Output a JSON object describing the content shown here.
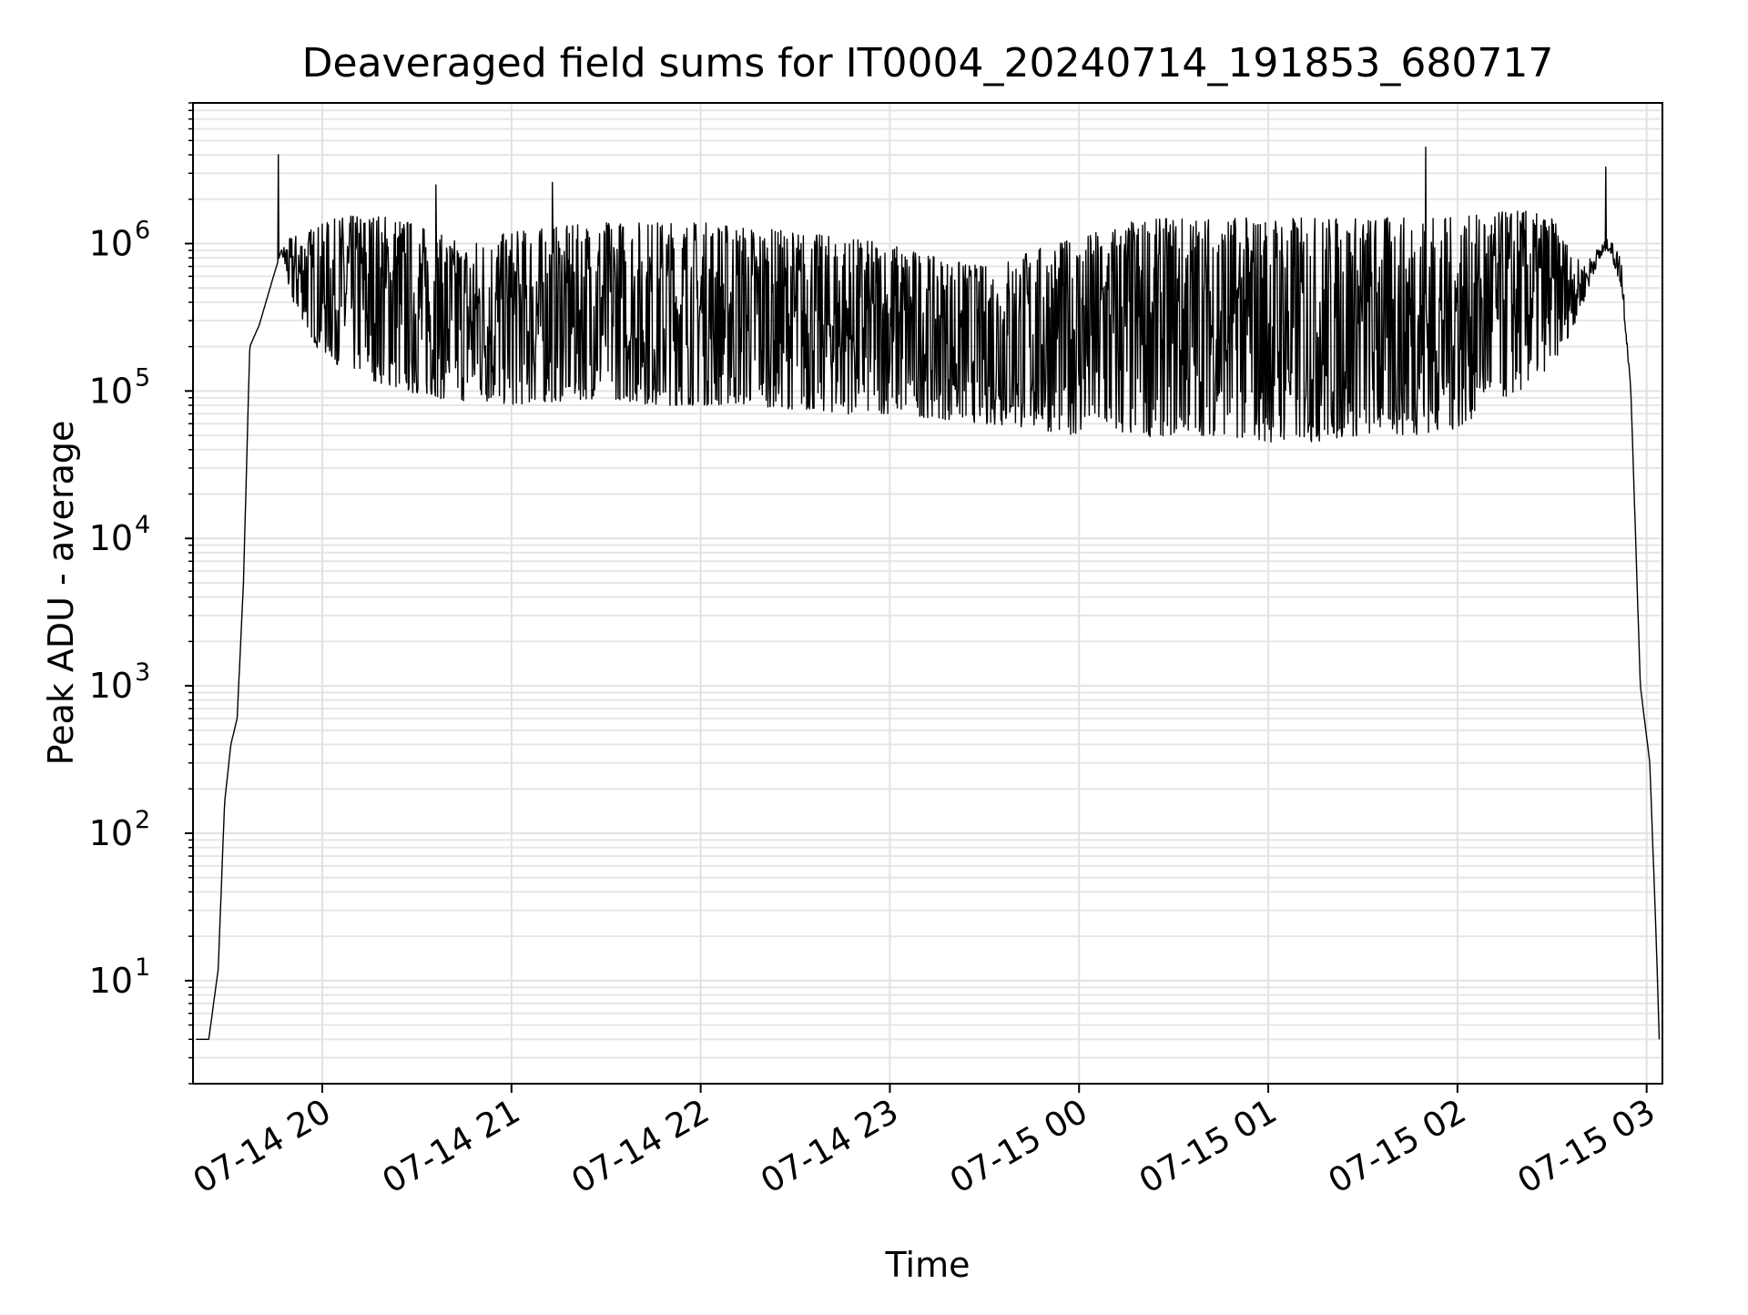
{
  "chart_data": {
    "type": "line",
    "title": "Deaveraged field sums for IT0004_20240714_191853_680717",
    "xlabel": "Time",
    "ylabel": "Peak ADU - average",
    "y_scale": "log",
    "ylim": [
      2,
      9000000
    ],
    "xlim": [
      "2024-07-14 19:19",
      "2024-07-15 03:05"
    ],
    "x_ticks": [
      {
        "t": "2024-07-14 20:00",
        "label": "07-14 20"
      },
      {
        "t": "2024-07-14 21:00",
        "label": "07-14 21"
      },
      {
        "t": "2024-07-14 22:00",
        "label": "07-14 22"
      },
      {
        "t": "2024-07-14 23:00",
        "label": "07-14 23"
      },
      {
        "t": "2024-07-15 00:00",
        "label": "07-15 00"
      },
      {
        "t": "2024-07-15 01:00",
        "label": "07-15 01"
      },
      {
        "t": "2024-07-15 02:00",
        "label": "07-15 02"
      },
      {
        "t": "2024-07-15 03:00",
        "label": "07-15 03"
      }
    ],
    "y_ticks": [
      {
        "value": 10,
        "base": "10",
        "exp": "1"
      },
      {
        "value": 100,
        "base": "10",
        "exp": "2"
      },
      {
        "value": 1000,
        "base": "10",
        "exp": "3"
      },
      {
        "value": 10000,
        "base": "10",
        "exp": "4"
      },
      {
        "value": 100000,
        "base": "10",
        "exp": "5"
      },
      {
        "value": 1000000,
        "base": "10",
        "exp": "6"
      }
    ],
    "grid": true,
    "series": [
      {
        "color": "#000000",
        "envelope": {
          "x": [
            "2024-07-14 19:20",
            "2024-07-14 19:24",
            "2024-07-14 19:27",
            "2024-07-14 19:29",
            "2024-07-14 19:31",
            "2024-07-14 19:33",
            "2024-07-14 19:35",
            "2024-07-14 19:37",
            "2024-07-14 19:40",
            "2024-07-14 19:44",
            "2024-07-14 19:47",
            "2024-07-14 19:50",
            "2024-07-14 19:54",
            "2024-07-14 19:58",
            "2024-07-14 20:05",
            "2024-07-14 20:15",
            "2024-07-14 20:25",
            "2024-07-14 20:35",
            "2024-07-14 20:45",
            "2024-07-14 21:00",
            "2024-07-14 21:15",
            "2024-07-14 21:30",
            "2024-07-14 21:45",
            "2024-07-14 22:00",
            "2024-07-14 22:15",
            "2024-07-14 22:30",
            "2024-07-14 22:45",
            "2024-07-14 23:00",
            "2024-07-14 23:15",
            "2024-07-14 23:30",
            "2024-07-14 23:45",
            "2024-07-15 00:00",
            "2024-07-15 00:15",
            "2024-07-15 00:30",
            "2024-07-15 00:45",
            "2024-07-15 01:00",
            "2024-07-15 01:15",
            "2024-07-15 01:30",
            "2024-07-15 01:45",
            "2024-07-15 02:00",
            "2024-07-15 02:10",
            "2024-07-15 02:20",
            "2024-07-15 02:30",
            "2024-07-15 02:36",
            "2024-07-15 02:40",
            "2024-07-15 02:44",
            "2024-07-15 02:48",
            "2024-07-15 02:52",
            "2024-07-15 02:55",
            "2024-07-15 02:58",
            "2024-07-15 03:01",
            "2024-07-15 03:03",
            "2024-07-15 03:04"
          ],
          "lower": [
            4,
            4,
            12,
            160,
            400,
            600,
            5000,
            200000,
            280000,
            550000,
            900000,
            400000,
            300000,
            200000,
            150000,
            120000,
            100000,
            90000,
            85000,
            80000,
            85000,
            90000,
            80000,
            80000,
            80000,
            75000,
            70000,
            70000,
            65000,
            60000,
            55000,
            50000,
            48000,
            50000,
            50000,
            45000,
            45000,
            50000,
            50000,
            55000,
            80000,
            100000,
            150000,
            250000,
            400000,
            700000,
            900000,
            500000,
            100000,
            1000,
            300,
            20,
            4
          ],
          "upper": [
            4,
            4,
            12,
            160,
            400,
            600,
            5000,
            200000,
            280000,
            550000,
            900000,
            1100000,
            1200000,
            1300000,
            1500000,
            1600000,
            1500000,
            1200000,
            1000000,
            1200000,
            1300000,
            1400000,
            1400000,
            1400000,
            1300000,
            1200000,
            1100000,
            1000000,
            800000,
            700000,
            900000,
            1100000,
            1400000,
            1500000,
            1500000,
            1500000,
            1500000,
            1500000,
            1500000,
            1500000,
            1600000,
            1700000,
            1500000,
            900000,
            700000,
            900000,
            1100000,
            800000,
            100000,
            1000,
            300,
            20,
            4
          ]
        },
        "noise_seed": 7,
        "spikes": [
          {
            "t": "2024-07-14 19:46",
            "value": 4000000
          },
          {
            "t": "2024-07-14 20:36",
            "value": 2500000
          },
          {
            "t": "2024-07-14 21:13",
            "value": 2600000
          },
          {
            "t": "2024-07-15 01:50",
            "value": 4500000
          },
          {
            "t": "2024-07-15 02:47",
            "value": 3300000
          }
        ]
      }
    ]
  }
}
